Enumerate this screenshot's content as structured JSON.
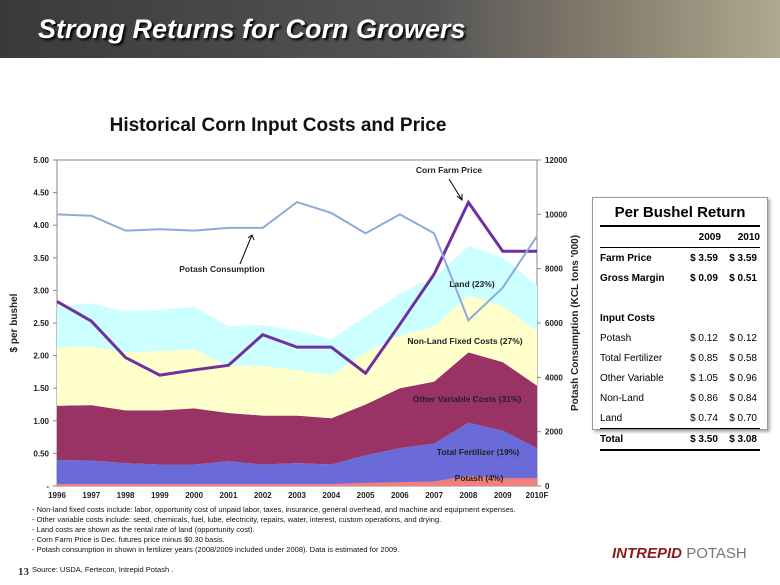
{
  "slide": {
    "title": "Strong Returns for Corn Growers",
    "page_number": "13",
    "logo": [
      "INTREPID",
      "POTASH"
    ]
  },
  "chart_data": {
    "type": "area",
    "stacked": true,
    "title": "Historical Corn Input Costs and Price",
    "y_label": "$ per bushel",
    "y2_label": "Potash Consumption (KCL tons '000)",
    "categories": [
      "1996",
      "1997",
      "1998",
      "1999",
      "2000",
      "2001",
      "2002",
      "2003",
      "2004",
      "2005",
      "2006",
      "2007",
      "2008",
      "2009",
      "2010F"
    ],
    "ylim": [
      0,
      5
    ],
    "yticks": [
      {
        "value": 0,
        "label": "-"
      },
      {
        "value": 0.5,
        "label": "0.50"
      },
      {
        "value": 1,
        "label": "1.00"
      },
      {
        "value": 1.5,
        "label": "1.50"
      },
      {
        "value": 2,
        "label": "2.00"
      },
      {
        "value": 2.5,
        "label": "2.50"
      },
      {
        "value": 3,
        "label": "3.00"
      },
      {
        "value": 3.5,
        "label": "3.50"
      },
      {
        "value": 4,
        "label": "4.00"
      },
      {
        "value": 4.5,
        "label": "4.50"
      },
      {
        "value": 5,
        "label": "5.00"
      }
    ],
    "y2lim": [
      0,
      12000
    ],
    "y2ticks": [
      0,
      2000,
      4000,
      6000,
      8000,
      10000,
      12000
    ],
    "grid": false,
    "series": [
      {
        "name": "Total Fertilizer (19%)",
        "color": "#6a6ad8",
        "values": [
          0.4,
          0.39,
          0.35,
          0.33,
          0.33,
          0.38,
          0.33,
          0.35,
          0.33,
          0.47,
          0.58,
          0.65,
          0.97,
          0.85,
          0.58
        ]
      },
      {
        "name": "Other Variable Costs (31%)",
        "color": "#993366",
        "values": [
          0.83,
          0.85,
          0.81,
          0.83,
          0.86,
          0.74,
          0.75,
          0.73,
          0.71,
          0.78,
          0.92,
          0.95,
          1.08,
          1.05,
          0.96
        ]
      },
      {
        "name": "Non-Land Fixed Costs (27%)",
        "color": "#ffffcc",
        "values": [
          0.89,
          0.9,
          0.89,
          0.91,
          0.91,
          0.72,
          0.76,
          0.7,
          0.66,
          0.8,
          0.8,
          0.85,
          0.88,
          0.86,
          0.84
        ]
      },
      {
        "name": "Land (23%)",
        "color": "#ccffff",
        "values": [
          0.63,
          0.66,
          0.63,
          0.63,
          0.65,
          0.61,
          0.63,
          0.6,
          0.55,
          0.55,
          0.65,
          0.75,
          0.75,
          0.74,
          0.7
        ]
      },
      {
        "name": "Potash (4%)",
        "color": "#f08080",
        "stack": false,
        "values": [
          0.03,
          0.03,
          0.03,
          0.03,
          0.03,
          0.03,
          0.03,
          0.03,
          0.03,
          0.05,
          0.06,
          0.07,
          0.16,
          0.12,
          0.12
        ]
      },
      {
        "name": "Corn Farm Price",
        "type": "line",
        "color": "#7030a0",
        "values": [
          2.83,
          2.53,
          1.97,
          1.7,
          1.78,
          1.85,
          2.32,
          2.13,
          2.13,
          1.73,
          2.48,
          3.25,
          4.35,
          3.6,
          3.6
        ]
      },
      {
        "name": "Potash Consumption",
        "type": "line",
        "axis": "y2",
        "color": "#8eaadb",
        "values": [
          10000,
          9950,
          9400,
          9450,
          9400,
          9500,
          9500,
          10450,
          10050,
          9300,
          10000,
          9300,
          6100,
          7300,
          9200
        ]
      }
    ]
  },
  "table": {
    "title": "Per Bushel Return",
    "columns": [
      "2009",
      "2010"
    ],
    "summary_rows": [
      [
        "Farm Price",
        "$ 3.59",
        "$ 3.59"
      ],
      [
        "Gross Margin",
        "$ 0.09",
        "$ 0.51"
      ]
    ],
    "section": "Input Costs",
    "input_rows": [
      [
        "Potash",
        "$ 0.12",
        "$ 0.12"
      ],
      [
        "Total Fertilizer",
        "$ 0.85",
        "$ 0.58"
      ],
      [
        "Other Variable",
        "$ 1.05",
        "$ 0.96"
      ],
      [
        "Non-Land",
        "$ 0.86",
        "$ 0.84"
      ],
      [
        "Land",
        "$ 0.74",
        "$ 0.70"
      ]
    ],
    "total_row": [
      "Total",
      "$ 3.50",
      "$ 3.08"
    ]
  },
  "notes": [
    "- Non-land fixed costs include: labor, opportunity cost of unpaid labor, taxes, insurance, general overhead, and machine and equipment expenses.",
    "- Other variable costs include: seed, chemicals, fuel, lube, electricity, repairs, water, interest, custom operations, and drying.",
    "- Land costs are shown as the rental rate of land (opportunity cost).",
    "- Corn Farm Price is Dec. futures price minus $0.30 basis.",
    "- Potash consumption in shown in fertilizer years (2008/2009 included under 2008). Data is estimated for 2009."
  ],
  "source": "Source: USDA, Fertecon, Intrepid Potash ."
}
